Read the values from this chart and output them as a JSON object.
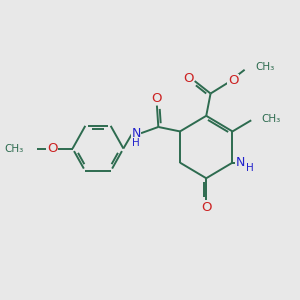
{
  "bg_color": "#e8e8e8",
  "bond_color": "#2d6b4f",
  "N_color": "#2222cc",
  "O_color": "#cc2222",
  "line_width": 1.4,
  "figsize": [
    3.0,
    3.0
  ],
  "dpi": 100,
  "xlim": [
    0,
    10
  ],
  "ylim": [
    0,
    10
  ]
}
